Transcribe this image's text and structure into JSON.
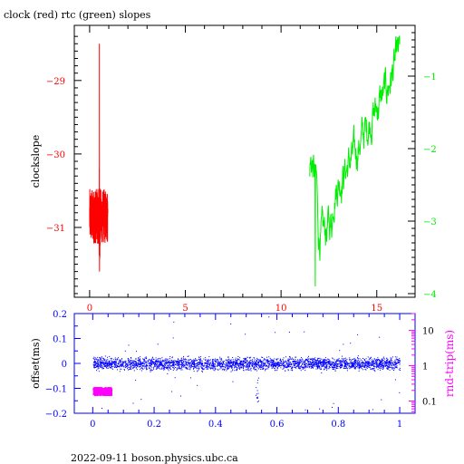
{
  "title": "clock (red) rtc (green) slopes",
  "footer": "2022-09-11 boson.physics.ubc.ca",
  "colors": {
    "red": "#ff0000",
    "green": "#00ee00",
    "blue": "#0000ff",
    "magenta": "#ff00ff",
    "axis": "#000000"
  },
  "chart_data": [
    {
      "type": "line",
      "ylabel": "clockslope",
      "xlim": [
        -0.8,
        17.0
      ],
      "ylim": [
        -31.95,
        -28.25
      ],
      "y2lim": [
        -4.05,
        -0.3
      ],
      "x_ticks": [
        "0",
        "5",
        "10",
        "15"
      ],
      "y_ticks": [
        "-29",
        "-30",
        "-31"
      ],
      "y2_ticks": [
        "-1",
        "-2",
        "-3",
        "-4"
      ],
      "series": [
        {
          "color": "red",
          "x_range": [
            0.0,
            0.95
          ],
          "y_range": [
            -31.6,
            -28.5
          ],
          "axis": "left"
        },
        {
          "color": "green",
          "x_range": [
            11.5,
            16.2
          ],
          "y_range": [
            -3.9,
            -0.5
          ],
          "axis": "right"
        }
      ]
    },
    {
      "type": "scatter",
      "ylabel": "offset(ms)",
      "y2label": "rnd-trip(ms)",
      "xlim": [
        -0.06,
        1.05
      ],
      "ylim": [
        -0.2,
        0.2
      ],
      "y2_log": true,
      "x_ticks": [
        "0",
        "0.2",
        "0.4",
        "0.6",
        "0.8",
        "1"
      ],
      "y_ticks": [
        "0.2",
        "0.1",
        "0",
        "-0.1",
        "-0.2"
      ],
      "y2_ticks": [
        "10",
        "1",
        "0.1"
      ],
      "series": [
        {
          "color": "blue",
          "x_range": [
            0.0,
            1.0
          ],
          "y_range": [
            -0.04,
            0.04
          ],
          "axis": "left"
        },
        {
          "color": "magenta",
          "x_range": [
            0.0,
            0.06
          ],
          "y_range": [
            0.15,
            0.25
          ],
          "axis": "right"
        }
      ]
    }
  ]
}
